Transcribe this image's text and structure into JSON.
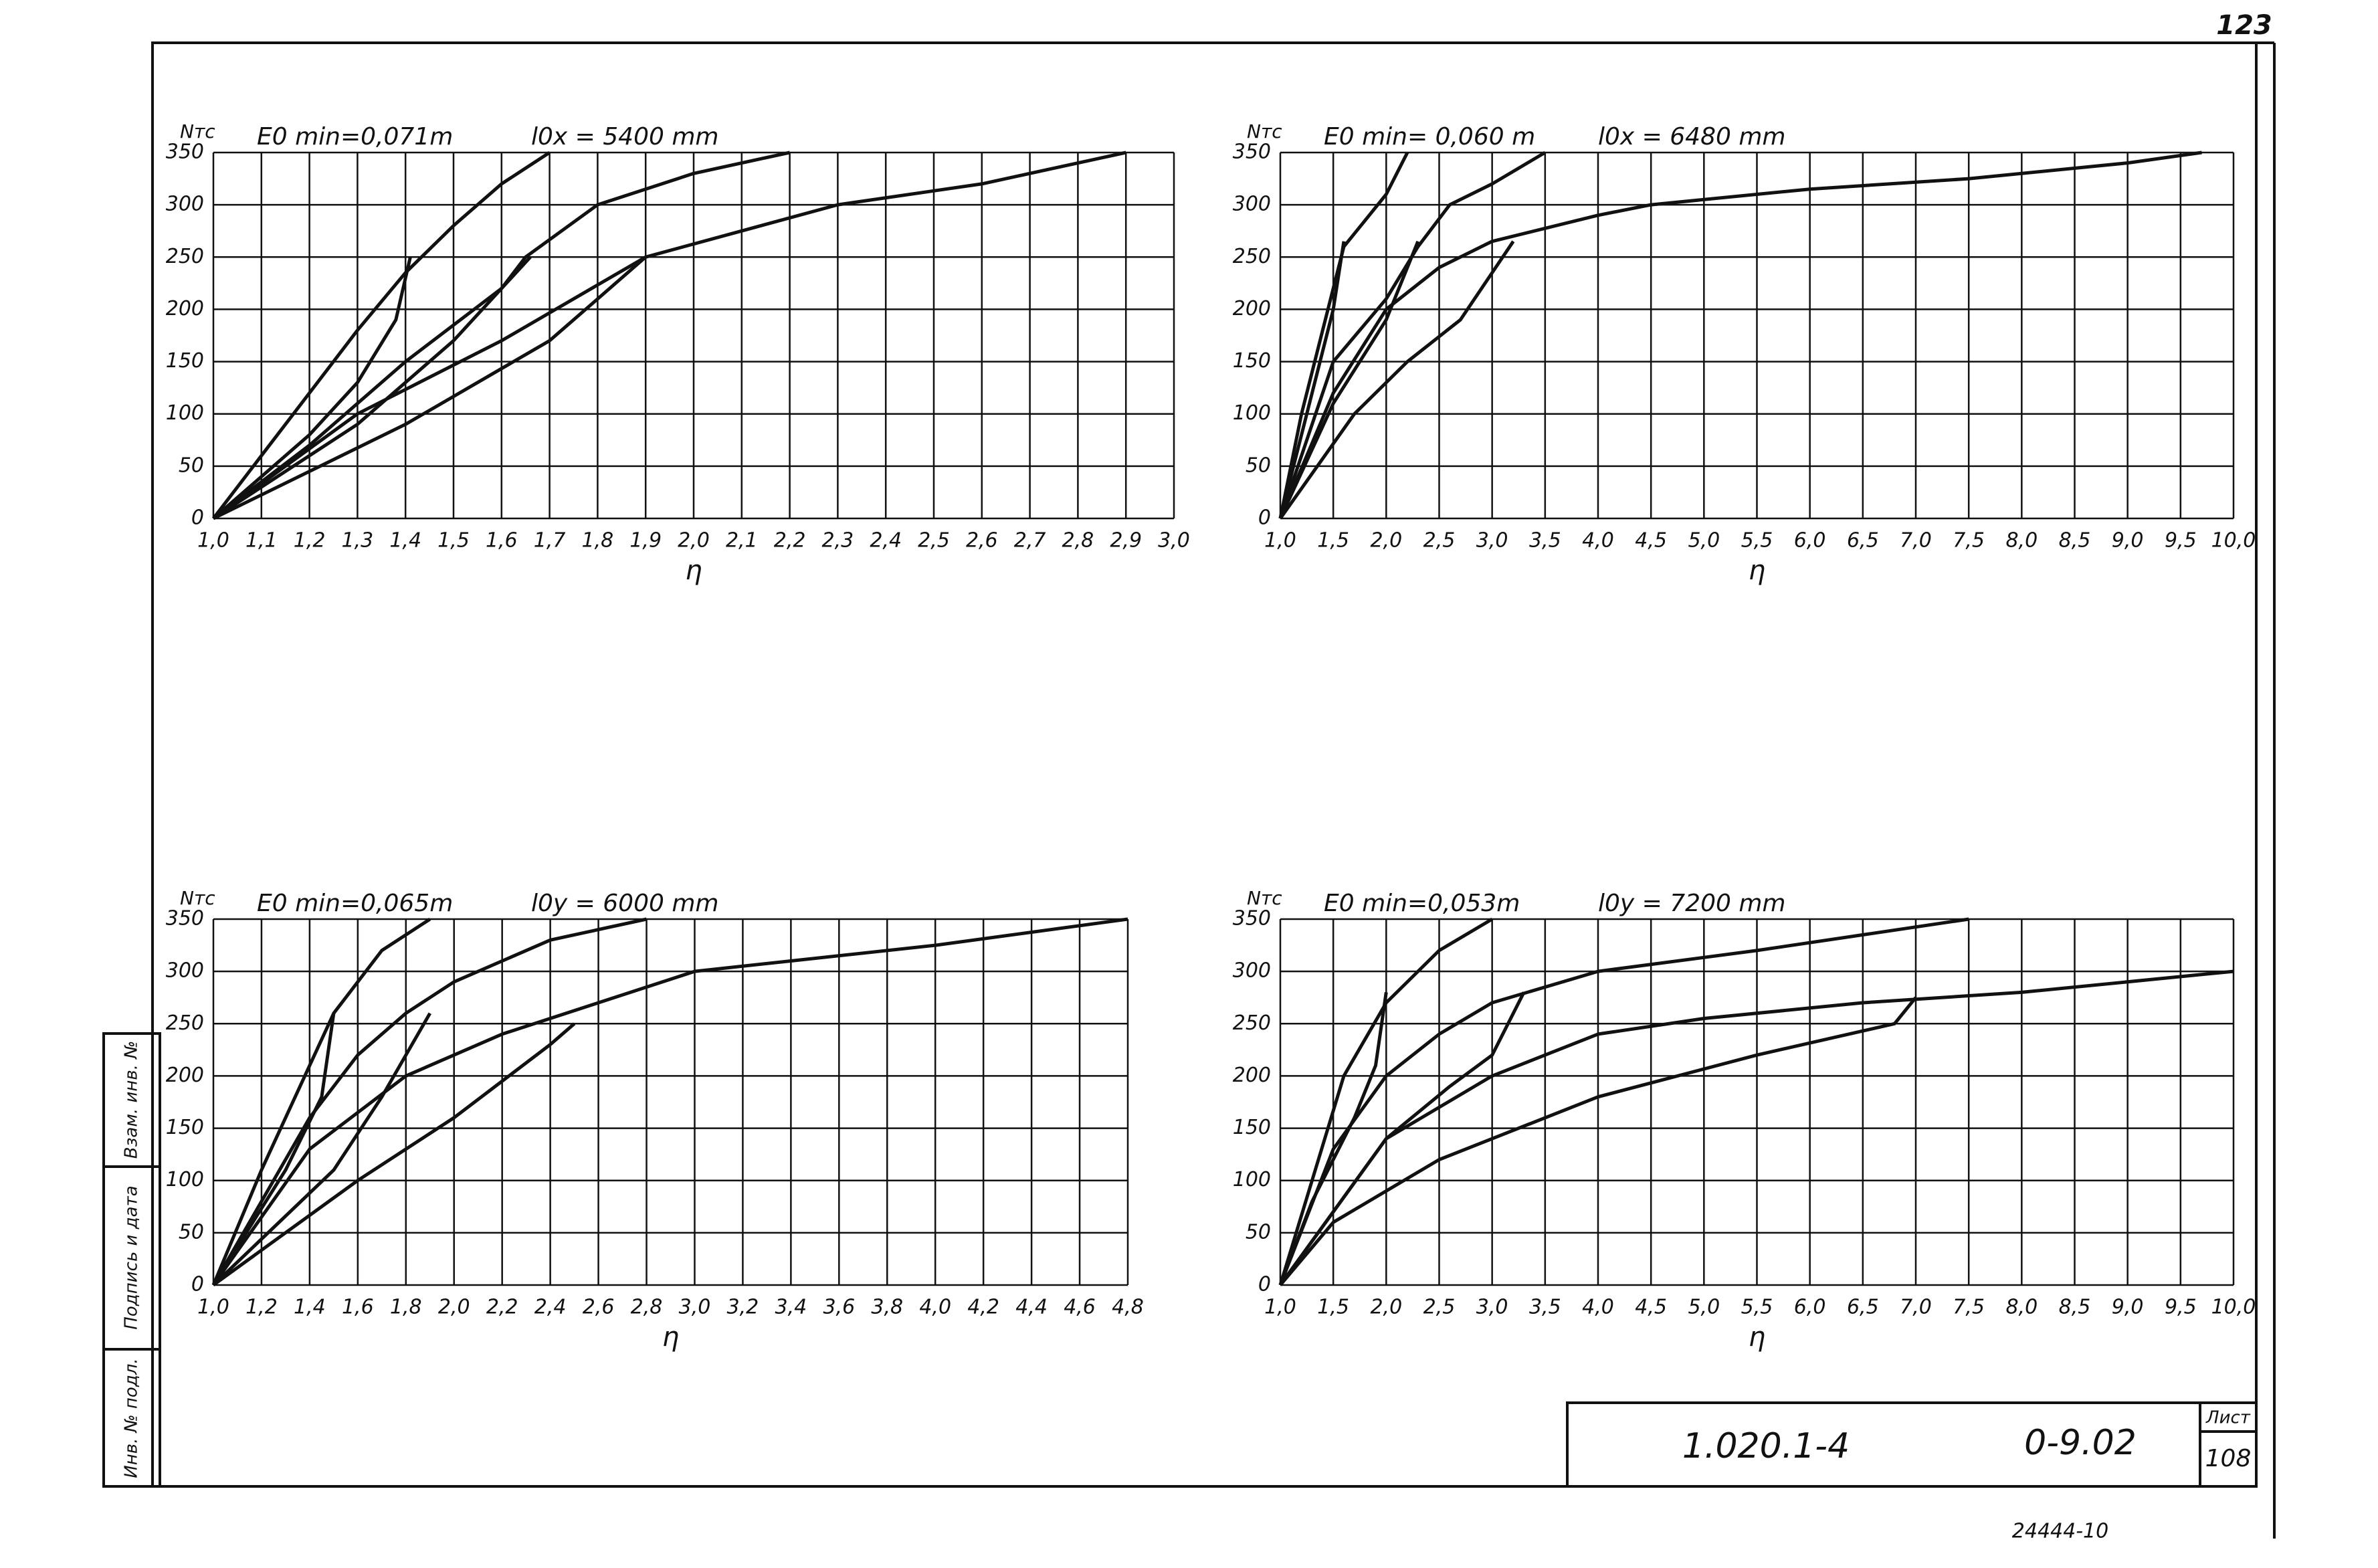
{
  "sheet": {
    "page_number": "123",
    "stamp": [
      "Инв. № подл.",
      "Подпись и дата",
      "Взам. инв. №"
    ],
    "doc_code": "1.020.1-4",
    "doc_part": "0-9.02",
    "sheet_label": "Лист",
    "sheet_number": "108",
    "footer": "24444-10"
  },
  "chart_data": [
    {
      "type": "line",
      "color": "#111111",
      "grid": true,
      "y_label": "Nтс",
      "annotations": [
        "E0 min=0,071m",
        "l0x = 5400 mm"
      ],
      "x_label": "η",
      "xlim": [
        1.0,
        3.0
      ],
      "ylim": [
        0,
        350
      ],
      "yticks": [
        0,
        50,
        100,
        150,
        200,
        250,
        300,
        350
      ],
      "xticks": [
        {
          "value": 1.0,
          "label": "1,0"
        },
        {
          "value": 1.1,
          "label": "1,1"
        },
        {
          "value": 1.2,
          "label": "1,2"
        },
        {
          "value": 1.3,
          "label": "1,3"
        },
        {
          "value": 1.4,
          "label": "1,4"
        },
        {
          "value": 1.5,
          "label": "1,5"
        },
        {
          "value": 1.6,
          "label": "1,6"
        },
        {
          "value": 1.7,
          "label": "1,7"
        },
        {
          "value": 1.8,
          "label": "1,8"
        },
        {
          "value": 1.9,
          "label": "1,9"
        },
        {
          "value": 2.0,
          "label": "2,0"
        },
        {
          "value": 2.1,
          "label": "2,1"
        },
        {
          "value": 2.2,
          "label": "2,2"
        },
        {
          "value": 2.3,
          "label": "2,3"
        },
        {
          "value": 2.4,
          "label": "2,4"
        },
        {
          "value": 2.5,
          "label": "2,5"
        },
        {
          "value": 2.6,
          "label": "2,6"
        },
        {
          "value": 2.7,
          "label": "2,7"
        },
        {
          "value": 2.8,
          "label": "2,8"
        },
        {
          "value": 2.9,
          "label": "2,9"
        },
        {
          "value": 3.0,
          "label": "3,0"
        }
      ],
      "series": [
        {
          "x": [
            1.0,
            1.1,
            1.2,
            1.3,
            1.4,
            1.5,
            1.6,
            1.7
          ],
          "values": [
            0,
            60,
            120,
            180,
            235,
            280,
            320,
            350
          ]
        },
        {
          "x": [
            1.0,
            1.2,
            1.3,
            1.38,
            1.41
          ],
          "values": [
            0,
            80,
            130,
            190,
            250
          ]
        },
        {
          "x": [
            1.0,
            1.2,
            1.4,
            1.6,
            1.65,
            1.8,
            2.0,
            2.2
          ],
          "values": [
            0,
            70,
            150,
            220,
            250,
            300,
            330,
            350
          ]
        },
        {
          "x": [
            1.0,
            1.3,
            1.5,
            1.6,
            1.66
          ],
          "values": [
            0,
            90,
            170,
            220,
            250
          ]
        },
        {
          "x": [
            1.0,
            1.3,
            1.6,
            1.9,
            2.3,
            2.6,
            2.9
          ],
          "values": [
            0,
            100,
            170,
            250,
            300,
            320,
            350
          ]
        },
        {
          "x": [
            1.0,
            1.4,
            1.7,
            1.9
          ],
          "values": [
            0,
            90,
            170,
            250
          ]
        }
      ]
    },
    {
      "type": "line",
      "color": "#111111",
      "grid": true,
      "y_label": "Nтс",
      "annotations": [
        "E0 min= 0,060 m",
        "l0x = 6480 mm"
      ],
      "x_label": "η",
      "xlim": [
        1.0,
        10.0
      ],
      "ylim": [
        0,
        350
      ],
      "yticks": [
        0,
        50,
        100,
        150,
        200,
        250,
        300,
        350
      ],
      "xticks": [
        {
          "value": 1.0,
          "label": "1,0"
        },
        {
          "value": 1.5,
          "label": "1,5"
        },
        {
          "value": 2.0,
          "label": "2,0"
        },
        {
          "value": 2.5,
          "label": "2,5"
        },
        {
          "value": 3.0,
          "label": "3,0"
        },
        {
          "value": 3.5,
          "label": "3,5"
        },
        {
          "value": 4.0,
          "label": "4,0"
        },
        {
          "value": 4.5,
          "label": "4,5"
        },
        {
          "value": 5.0,
          "label": "5,0"
        },
        {
          "value": 5.5,
          "label": "5,5"
        },
        {
          "value": 6.0,
          "label": "6,0"
        },
        {
          "value": 6.5,
          "label": "6,5"
        },
        {
          "value": 7.0,
          "label": "7,0"
        },
        {
          "value": 7.5,
          "label": "7,5"
        },
        {
          "value": 8.0,
          "label": "8,0"
        },
        {
          "value": 8.5,
          "label": "8,5"
        },
        {
          "value": 9.0,
          "label": "9,0"
        },
        {
          "value": 9.5,
          "label": "9,5"
        },
        {
          "value": 10.0,
          "label": "10,0"
        }
      ],
      "series": [
        {
          "x": [
            1.0,
            1.2,
            1.4,
            1.6,
            2.0,
            2.2
          ],
          "values": [
            0,
            100,
            180,
            260,
            310,
            350
          ]
        },
        {
          "x": [
            1.0,
            1.3,
            1.5,
            1.6
          ],
          "values": [
            0,
            120,
            200,
            265
          ]
        },
        {
          "x": [
            1.0,
            1.5,
            2.0,
            2.3,
            2.6,
            3.0,
            3.5
          ],
          "values": [
            0,
            150,
            210,
            260,
            300,
            320,
            350
          ]
        },
        {
          "x": [
            1.0,
            1.5,
            2.0,
            2.3
          ],
          "values": [
            0,
            110,
            190,
            265
          ]
        },
        {
          "x": [
            1.0,
            1.5,
            2.0,
            2.5,
            3.0,
            4.0,
            4.5,
            6.0,
            7.5,
            9.0,
            9.7
          ],
          "values": [
            0,
            120,
            200,
            240,
            265,
            290,
            300,
            315,
            325,
            340,
            350
          ]
        },
        {
          "x": [
            1.0,
            1.7,
            2.2,
            2.7,
            3.2
          ],
          "values": [
            0,
            100,
            150,
            190,
            265
          ]
        }
      ]
    },
    {
      "type": "line",
      "color": "#111111",
      "grid": true,
      "y_label": "Nтс",
      "annotations": [
        "E0 min=0,065m",
        "l0y = 6000 mm"
      ],
      "x_label": "η",
      "xlim": [
        1.0,
        4.8
      ],
      "ylim": [
        0,
        350
      ],
      "yticks": [
        0,
        50,
        100,
        150,
        200,
        250,
        300,
        350
      ],
      "xticks": [
        {
          "value": 1.0,
          "label": "1,0"
        },
        {
          "value": 1.2,
          "label": "1,2"
        },
        {
          "value": 1.4,
          "label": "1,4"
        },
        {
          "value": 1.6,
          "label": "1,6"
        },
        {
          "value": 1.8,
          "label": "1,8"
        },
        {
          "value": 2.0,
          "label": "2,0"
        },
        {
          "value": 2.2,
          "label": "2,2"
        },
        {
          "value": 2.4,
          "label": "2,4"
        },
        {
          "value": 2.6,
          "label": "2,6"
        },
        {
          "value": 2.8,
          "label": "2,8"
        },
        {
          "value": 3.0,
          "label": "3,0"
        },
        {
          "value": 3.2,
          "label": "3,2"
        },
        {
          "value": 3.4,
          "label": "3,4"
        },
        {
          "value": 3.6,
          "label": "3,6"
        },
        {
          "value": 3.8,
          "label": "3,8"
        },
        {
          "value": 4.0,
          "label": "4,0"
        },
        {
          "value": 4.2,
          "label": "4,2"
        },
        {
          "value": 4.4,
          "label": "4,4"
        },
        {
          "value": 4.6,
          "label": "4,6"
        },
        {
          "value": 4.8,
          "label": "4,8"
        }
      ],
      "series": [
        {
          "x": [
            1.0,
            1.2,
            1.4,
            1.5,
            1.7,
            1.9
          ],
          "values": [
            0,
            110,
            210,
            260,
            320,
            350
          ]
        },
        {
          "x": [
            1.0,
            1.3,
            1.45,
            1.5
          ],
          "values": [
            0,
            110,
            180,
            260
          ]
        },
        {
          "x": [
            1.0,
            1.4,
            1.6,
            1.8,
            2.0,
            2.4,
            2.8
          ],
          "values": [
            0,
            160,
            220,
            260,
            290,
            330,
            350
          ]
        },
        {
          "x": [
            1.0,
            1.5,
            1.7,
            1.9
          ],
          "values": [
            0,
            110,
            180,
            260
          ]
        },
        {
          "x": [
            1.0,
            1.4,
            1.8,
            2.2,
            2.6,
            3.0,
            3.4,
            4.0,
            4.8
          ],
          "values": [
            0,
            130,
            200,
            240,
            270,
            300,
            310,
            325,
            350
          ]
        },
        {
          "x": [
            1.0,
            1.6,
            2.0,
            2.4,
            2.5
          ],
          "values": [
            0,
            100,
            160,
            230,
            250
          ]
        }
      ]
    },
    {
      "type": "line",
      "color": "#111111",
      "grid": true,
      "y_label": "Nтс",
      "annotations": [
        "E0 min=0,053m",
        "l0y = 7200 mm"
      ],
      "x_label": "η",
      "xlim": [
        1.0,
        10.0
      ],
      "ylim": [
        0,
        350
      ],
      "yticks": [
        0,
        50,
        100,
        150,
        200,
        250,
        300,
        350
      ],
      "xticks": [
        {
          "value": 1.0,
          "label": "1,0"
        },
        {
          "value": 1.5,
          "label": "1,5"
        },
        {
          "value": 2.0,
          "label": "2,0"
        },
        {
          "value": 2.5,
          "label": "2,5"
        },
        {
          "value": 3.0,
          "label": "3,0"
        },
        {
          "value": 3.5,
          "label": "3,5"
        },
        {
          "value": 4.0,
          "label": "4,0"
        },
        {
          "value": 4.5,
          "label": "4,5"
        },
        {
          "value": 5.0,
          "label": "5,0"
        },
        {
          "value": 5.5,
          "label": "5,5"
        },
        {
          "value": 6.0,
          "label": "6,0"
        },
        {
          "value": 6.5,
          "label": "6,5"
        },
        {
          "value": 7.0,
          "label": "7,0"
        },
        {
          "value": 7.5,
          "label": "7,5"
        },
        {
          "value": 8.0,
          "label": "8,0"
        },
        {
          "value": 8.5,
          "label": "8,5"
        },
        {
          "value": 9.0,
          "label": "9,0"
        },
        {
          "value": 9.5,
          "label": "9,5"
        },
        {
          "value": 10.0,
          "label": "10,0"
        }
      ],
      "series": [
        {
          "x": [
            1.0,
            1.3,
            1.6,
            2.0,
            2.5,
            3.0
          ],
          "values": [
            0,
            100,
            200,
            270,
            320,
            350
          ]
        },
        {
          "x": [
            1.0,
            1.3,
            1.7,
            1.9,
            2.0
          ],
          "values": [
            0,
            80,
            160,
            210,
            280
          ]
        },
        {
          "x": [
            1.0,
            1.5,
            2.0,
            2.5,
            3.0,
            4.0,
            5.5,
            7.5
          ],
          "values": [
            0,
            130,
            200,
            240,
            270,
            300,
            320,
            350
          ]
        },
        {
          "x": [
            1.0,
            2.0,
            2.6,
            3.0,
            3.3
          ],
          "values": [
            0,
            140,
            190,
            220,
            280
          ]
        },
        {
          "x": [
            1.0,
            2.0,
            3.0,
            4.0,
            5.0,
            6.5,
            8.0,
            10.0
          ],
          "values": [
            0,
            140,
            200,
            240,
            255,
            270,
            280,
            300
          ]
        },
        {
          "x": [
            1.0,
            1.5,
            2.5,
            4.0,
            5.5,
            6.8,
            7.0
          ],
          "values": [
            0,
            60,
            120,
            180,
            220,
            250,
            275
          ]
        }
      ]
    }
  ]
}
